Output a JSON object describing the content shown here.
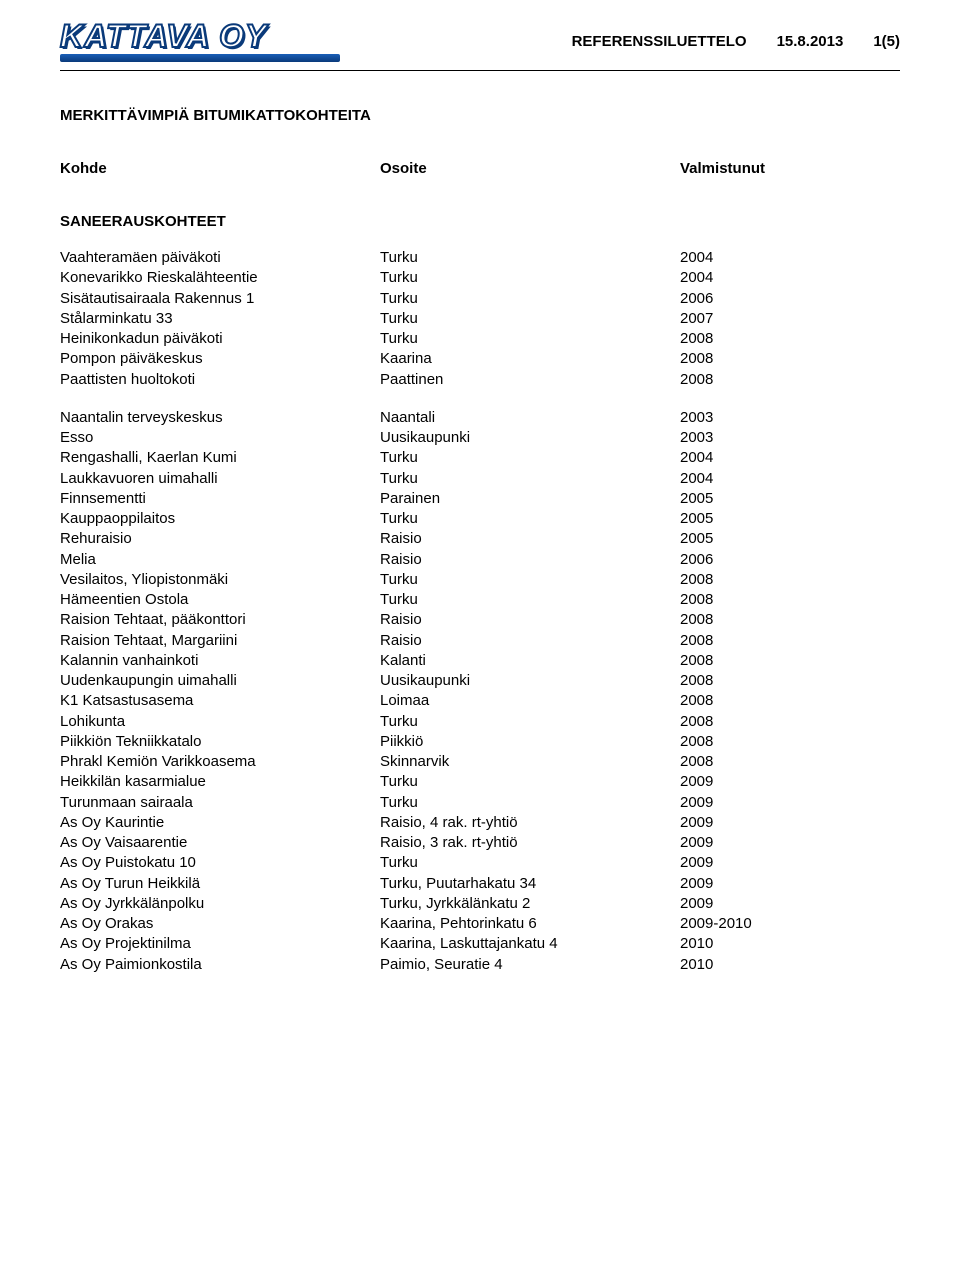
{
  "header": {
    "logo_text": "KATTAVA OY",
    "doc_label": "REFERENSSILUETTELO",
    "date": "15.8.2013",
    "page": "1(5)"
  },
  "title": "MERKITTÄVIMPIÄ BITUMIKATTOKOHTEITA",
  "columns": {
    "c1": "Kohde",
    "c2": "Osoite",
    "c3": "Valmistunut"
  },
  "section1": {
    "title": "SANEERAUSKOHTEET",
    "rows1": [
      {
        "kohde": "Vaahteramäen päiväkoti",
        "osoite": "Turku",
        "valm": "2004"
      },
      {
        "kohde": "Konevarikko Rieskalähteentie",
        "osoite": "Turku",
        "valm": "2004"
      },
      {
        "kohde": "Sisätautisairaala Rakennus 1",
        "osoite": "Turku",
        "valm": "2006"
      },
      {
        "kohde": "Stålarminkatu 33",
        "osoite": "Turku",
        "valm": "2007"
      },
      {
        "kohde": "Heinikonkadun päiväkoti",
        "osoite": "Turku",
        "valm": "2008"
      },
      {
        "kohde": "Pompon päiväkeskus",
        "osoite": "Kaarina",
        "valm": "2008"
      },
      {
        "kohde": "Paattisten huoltokoti",
        "osoite": "Paattinen",
        "valm": "2008"
      }
    ],
    "rows2": [
      {
        "kohde": "Naantalin terveyskeskus",
        "osoite": "Naantali",
        "valm": "2003"
      },
      {
        "kohde": "Esso",
        "osoite": "Uusikaupunki",
        "valm": "2003"
      },
      {
        "kohde": "Rengashalli, Kaerlan Kumi",
        "osoite": "Turku",
        "valm": "2004"
      },
      {
        "kohde": "Laukkavuoren uimahalli",
        "osoite": "Turku",
        "valm": "2004"
      },
      {
        "kohde": "Finnsementti",
        "osoite": "Parainen",
        "valm": "2005"
      },
      {
        "kohde": "Kauppaoppilaitos",
        "osoite": "Turku",
        "valm": "2005"
      },
      {
        "kohde": "Rehuraisio",
        "osoite": "Raisio",
        "valm": "2005"
      },
      {
        "kohde": "Melia",
        "osoite": "Raisio",
        "valm": "2006"
      },
      {
        "kohde": "Vesilaitos, Yliopistonmäki",
        "osoite": "Turku",
        "valm": "2008"
      },
      {
        "kohde": "Hämeentien Ostola",
        "osoite": "Turku",
        "valm": "2008"
      },
      {
        "kohde": "Raision Tehtaat, pääkonttori",
        "osoite": "Raisio",
        "valm": "2008"
      },
      {
        "kohde": "Raision  Tehtaat, Margariini",
        "osoite": "Raisio",
        "valm": "2008"
      },
      {
        "kohde": "Kalannin vanhainkoti",
        "osoite": "Kalanti",
        "valm": "2008"
      },
      {
        "kohde": "Uudenkaupungin uimahalli",
        "osoite": "Uusikaupunki",
        "valm": "2008"
      },
      {
        "kohde": "K1 Katsastusasema",
        "osoite": "Loimaa",
        "valm": "2008"
      },
      {
        "kohde": "Lohikunta",
        "osoite": "Turku",
        "valm": "2008"
      },
      {
        "kohde": "Piikkiön Tekniikkatalo",
        "osoite": "Piikkiö",
        "valm": "2008"
      },
      {
        "kohde": "Phrakl Kemiön Varikkoasema",
        "osoite": "Skinnarvik",
        "valm": "2008"
      },
      {
        "kohde": "Heikkilän kasarmialue",
        "osoite": "Turku",
        "valm": "2009"
      },
      {
        "kohde": "Turunmaan sairaala",
        "osoite": "Turku",
        "valm": "2009"
      },
      {
        "kohde": "As Oy Kaurintie",
        "osoite": "Raisio, 4 rak. rt-yhtiö",
        "valm": "2009"
      },
      {
        "kohde": "As Oy Vaisaarentie",
        "osoite": "Raisio, 3 rak. rt-yhtiö",
        "valm": "2009"
      },
      {
        "kohde": "As Oy Puistokatu 10",
        "osoite": "Turku",
        "valm": "2009"
      },
      {
        "kohde": "As Oy Turun Heikkilä",
        "osoite": "Turku, Puutarhakatu 34",
        "valm": "2009"
      },
      {
        "kohde": "As Oy Jyrkkälänpolku",
        "osoite": "Turku, Jyrkkälänkatu 2",
        "valm": "2009"
      },
      {
        "kohde": "As Oy Orakas",
        "osoite": "Kaarina, Pehtorinkatu 6",
        "valm": "2009-2010"
      },
      {
        "kohde": "As Oy Projektinilma",
        "osoite": "Kaarina, Laskuttajankatu 4",
        "valm": "2010"
      },
      {
        "kohde": "As Oy Paimionkostila",
        "osoite": "Paimio, Seuratie 4",
        "valm": "2010"
      }
    ]
  }
}
